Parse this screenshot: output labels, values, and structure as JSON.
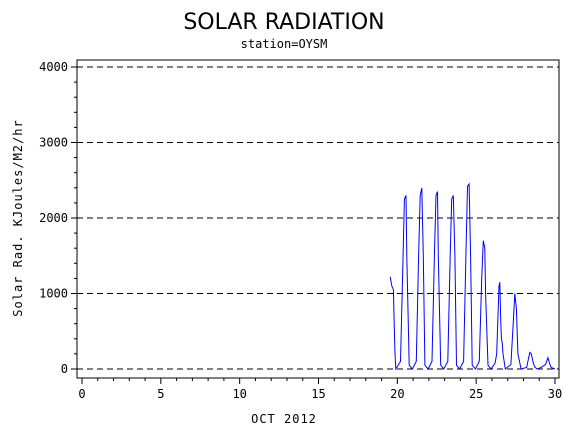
{
  "chart_data": {
    "type": "line",
    "title": "SOLAR RADIATION",
    "subtitle": "station=OYSM",
    "xlabel": "OCT 2012",
    "ylabel": "Solar Rad. KJoules/M2/hr",
    "xlim": [
      0,
      30
    ],
    "ylim": [
      0,
      4000
    ],
    "x_ticks": [
      0,
      5,
      10,
      15,
      20,
      25,
      30
    ],
    "y_ticks": [
      0,
      1000,
      2000,
      3000,
      4000
    ],
    "y_gridlines": [
      0,
      1000,
      2000,
      3000,
      4000
    ],
    "grid": "horizontal dashed",
    "series": [
      {
        "color": "#0000ff",
        "x": [
          19.55,
          19.65,
          19.75,
          19.8,
          19.85,
          19.9,
          20.2,
          20.35,
          20.45,
          20.55,
          20.6,
          20.75,
          20.95,
          21.2,
          21.35,
          21.45,
          21.55,
          21.65,
          21.75,
          21.95,
          22.2,
          22.35,
          22.45,
          22.55,
          22.6,
          22.75,
          22.95,
          23.2,
          23.35,
          23.45,
          23.55,
          23.65,
          23.75,
          23.95,
          24.2,
          24.35,
          24.45,
          24.55,
          24.65,
          24.75,
          24.95,
          25.2,
          25.35,
          25.45,
          25.55,
          25.6,
          25.75,
          25.95,
          26.2,
          26.3,
          26.45,
          26.5,
          26.55,
          26.6,
          26.65,
          26.7,
          26.85,
          27.2,
          27.35,
          27.45,
          27.55,
          27.65,
          27.85,
          28.2,
          28.4,
          28.5,
          28.6,
          28.7,
          28.8,
          28.9,
          29.2,
          29.4,
          29.55,
          29.65,
          29.75,
          30.0
        ],
        "y": [
          1220,
          1100,
          1050,
          600,
          200,
          0,
          100,
          1400,
          2250,
          2300,
          1500,
          50,
          0,
          100,
          1500,
          2300,
          2400,
          1500,
          50,
          0,
          100,
          1500,
          2300,
          2350,
          1500,
          50,
          0,
          100,
          1500,
          2250,
          2300,
          1500,
          50,
          0,
          100,
          1500,
          2420,
          2450,
          1500,
          50,
          0,
          100,
          1200,
          1700,
          1600,
          1000,
          50,
          0,
          80,
          200,
          1100,
          1150,
          700,
          400,
          350,
          200,
          0,
          60,
          600,
          1000,
          800,
          200,
          0,
          20,
          220,
          200,
          100,
          30,
          10,
          0,
          30,
          60,
          150,
          80,
          20,
          0
        ]
      }
    ]
  }
}
